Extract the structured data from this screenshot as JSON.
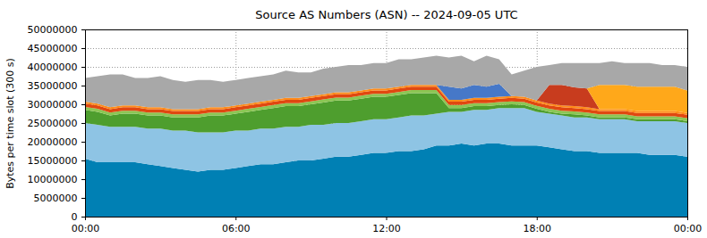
{
  "chart_data": {
    "type": "area",
    "stacked": true,
    "title": "Source AS Numbers (ASN) -- 2024-09-05 UTC",
    "y_label": "Bytes per time slot (300 s)",
    "grid": true,
    "xlim": [
      0,
      24
    ],
    "xticks": [
      {
        "value": 0,
        "label": "00:00"
      },
      {
        "value": 6,
        "label": "06:00"
      },
      {
        "value": 12,
        "label": "12:00"
      },
      {
        "value": 18,
        "label": "18:00"
      },
      {
        "value": 24,
        "label": "00:00"
      }
    ],
    "ylim": [
      0,
      50000000
    ],
    "yticks": [
      0,
      5000000,
      10000000,
      15000000,
      20000000,
      25000000,
      30000000,
      35000000,
      40000000,
      45000000,
      50000000
    ],
    "x": [
      0,
      0.5,
      1,
      1.5,
      2,
      2.5,
      3,
      3.5,
      4,
      4.5,
      5,
      5.5,
      6,
      6.5,
      7,
      7.5,
      8,
      8.5,
      9,
      9.5,
      10,
      10.5,
      11,
      11.5,
      12,
      12.5,
      13,
      13.5,
      14,
      14.5,
      15,
      15.5,
      16,
      16.5,
      17,
      17.5,
      18,
      18.5,
      19,
      19.5,
      20,
      20.5,
      21,
      21.5,
      22,
      22.5,
      23,
      23.5,
      24
    ],
    "series": [
      {
        "color": "#0080b4",
        "values": [
          15500000,
          14500000,
          14500000,
          14500000,
          14500000,
          14000000,
          13500000,
          13000000,
          12500000,
          12000000,
          12500000,
          12500000,
          13000000,
          13500000,
          14000000,
          14000000,
          14500000,
          15000000,
          15000000,
          15500000,
          16000000,
          16000000,
          16500000,
          17000000,
          17000000,
          17500000,
          17500000,
          18000000,
          19000000,
          19000000,
          19500000,
          19000000,
          19500000,
          19500000,
          19000000,
          19000000,
          19000000,
          18500000,
          18000000,
          17500000,
          17500000,
          17000000,
          17000000,
          17000000,
          17000000,
          16500000,
          16500000,
          16500000,
          16000000
        ]
      },
      {
        "color": "#8ec4e4",
        "values": [
          9500000,
          10000000,
          9500000,
          9500000,
          9500000,
          9500000,
          10000000,
          10000000,
          10500000,
          10500000,
          10000000,
          10000000,
          10000000,
          9500000,
          9500000,
          9500000,
          9500000,
          9000000,
          9500000,
          9000000,
          9000000,
          9000000,
          9000000,
          9000000,
          9000000,
          9000000,
          9500000,
          9000000,
          8500000,
          9000000,
          8500000,
          9500000,
          9000000,
          9500000,
          10000000,
          10000000,
          9000000,
          9000000,
          9000000,
          9000000,
          9000000,
          9000000,
          9000000,
          9000000,
          8500000,
          9000000,
          9000000,
          9000000,
          9000000
        ]
      },
      {
        "color": "#4e9e2e",
        "values": [
          3500000,
          3500000,
          3000000,
          3500000,
          3500000,
          3500000,
          3500000,
          3500000,
          3500000,
          4000000,
          4500000,
          4500000,
          4500000,
          5000000,
          5000000,
          5500000,
          5500000,
          5500000,
          5500000,
          6000000,
          6000000,
          6000000,
          6000000,
          6000000,
          6000000,
          6000000,
          6000000,
          6000000,
          5500000,
          1000000,
          1000000,
          1000000,
          1000000,
          800000,
          1000000,
          800000,
          800000,
          500000,
          500000,
          800000,
          500000,
          500000,
          500000,
          500000,
          500000,
          500000,
          500000,
          500000,
          500000
        ]
      },
      {
        "color": "#8cc654",
        "values": [
          800000,
          800000,
          800000,
          800000,
          800000,
          800000,
          800000,
          800000,
          800000,
          800000,
          800000,
          800000,
          800000,
          800000,
          800000,
          800000,
          800000,
          800000,
          800000,
          800000,
          800000,
          800000,
          800000,
          800000,
          800000,
          800000,
          800000,
          800000,
          800000,
          800000,
          800000,
          800000,
          800000,
          800000,
          800000,
          800000,
          800000,
          800000,
          800000,
          800000,
          800000,
          800000,
          800000,
          800000,
          800000,
          800000,
          800000,
          800000,
          800000
        ]
      },
      {
        "color": "#e04810",
        "values": [
          900000,
          900000,
          900000,
          900000,
          900000,
          900000,
          900000,
          900000,
          900000,
          900000,
          900000,
          900000,
          900000,
          900000,
          900000,
          900000,
          900000,
          900000,
          900000,
          900000,
          900000,
          900000,
          900000,
          900000,
          900000,
          900000,
          900000,
          900000,
          900000,
          900000,
          900000,
          900000,
          900000,
          900000,
          900000,
          900000,
          900000,
          900000,
          900000,
          900000,
          900000,
          900000,
          900000,
          900000,
          900000,
          900000,
          900000,
          900000,
          900000
        ]
      },
      {
        "color": "#ff8c1a",
        "values": [
          500000,
          500000,
          500000,
          500000,
          500000,
          500000,
          500000,
          500000,
          500000,
          500000,
          500000,
          500000,
          500000,
          500000,
          500000,
          500000,
          500000,
          500000,
          500000,
          500000,
          500000,
          500000,
          500000,
          500000,
          500000,
          500000,
          500000,
          500000,
          500000,
          500000,
          500000,
          500000,
          500000,
          500000,
          500000,
          500000,
          500000,
          500000,
          500000,
          500000,
          500000,
          500000,
          500000,
          500000,
          500000,
          500000,
          500000,
          500000,
          500000
        ]
      },
      {
        "color": "#4678c8",
        "values": [
          0,
          0,
          0,
          0,
          0,
          0,
          0,
          0,
          0,
          0,
          0,
          0,
          0,
          0,
          0,
          0,
          0,
          0,
          0,
          0,
          0,
          0,
          0,
          0,
          0,
          0,
          0,
          0,
          0,
          3500000,
          3000000,
          3500000,
          3000000,
          3500000,
          0,
          0,
          0,
          0,
          0,
          0,
          0,
          0,
          0,
          0,
          0,
          0,
          0,
          0,
          0
        ]
      },
      {
        "color": "#c83c1e",
        "values": [
          0,
          0,
          0,
          0,
          0,
          0,
          0,
          0,
          0,
          0,
          0,
          0,
          0,
          0,
          0,
          0,
          0,
          0,
          0,
          0,
          0,
          0,
          0,
          0,
          0,
          0,
          0,
          0,
          0,
          0,
          0,
          0,
          0,
          0,
          0,
          0,
          0,
          5000000,
          5500000,
          5000000,
          5000000,
          0,
          0,
          0,
          0,
          0,
          0,
          0,
          0
        ]
      },
      {
        "color": "#ffa81a",
        "values": [
          0,
          0,
          0,
          0,
          0,
          0,
          0,
          0,
          0,
          0,
          0,
          0,
          0,
          0,
          0,
          0,
          0,
          0,
          0,
          0,
          0,
          0,
          0,
          0,
          0,
          0,
          0,
          0,
          0,
          0,
          0,
          0,
          0,
          0,
          0,
          0,
          0,
          0,
          0,
          0,
          0,
          6500000,
          6500000,
          6500000,
          6500000,
          6500000,
          6500000,
          6500000,
          6000000
        ]
      },
      {
        "color": "#a8a8a8",
        "values": [
          6300000,
          7300000,
          8800000,
          8300000,
          7300000,
          7800000,
          8300000,
          7800000,
          7300000,
          7800000,
          7300000,
          6800000,
          6800000,
          6800000,
          6800000,
          6800000,
          7300000,
          6800000,
          6300000,
          6800000,
          6800000,
          7300000,
          6800000,
          6800000,
          6800000,
          7300000,
          6800000,
          7300000,
          7800000,
          7800000,
          8800000,
          6300000,
          8300000,
          6500000,
          5800000,
          7000000,
          9000000,
          5300000,
          5800000,
          6500000,
          6800000,
          5800000,
          6300000,
          5800000,
          6300000,
          6300000,
          5800000,
          5800000,
          6300000
        ]
      }
    ]
  }
}
